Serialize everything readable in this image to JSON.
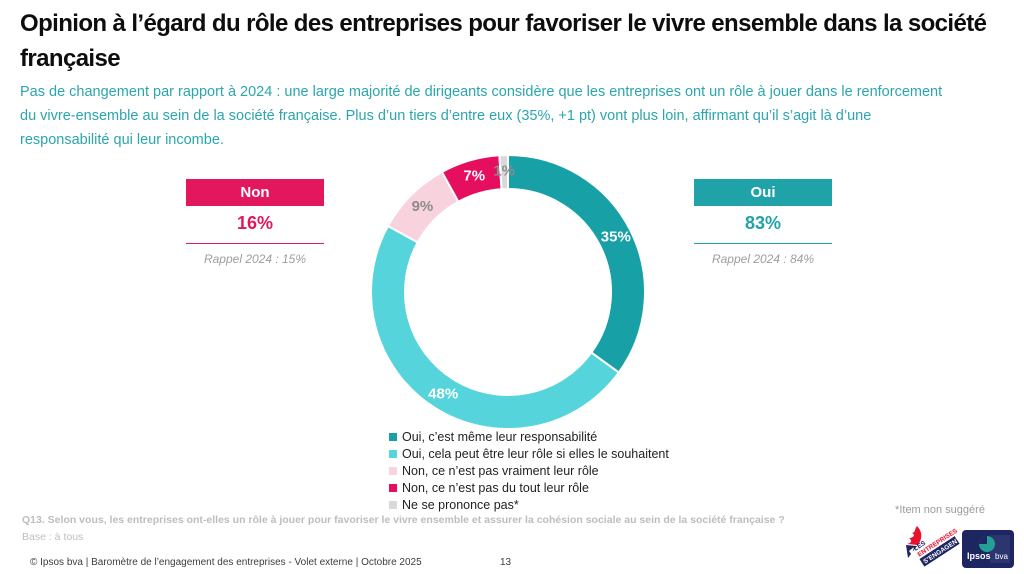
{
  "slide": {
    "title": "Opinion à l’égard du rôle des entreprises pour favoriser le vivre ensemble dans la société française",
    "subtitle": "Pas de changement par rapport à 2024 : une large majorité de dirigeants considère que les entreprises ont un rôle à jouer dans le renforcement du vivre-ensemble au sein de la société française. Plus d’un tiers d’entre eux (35%, +1 pt) vont plus loin, affirmant qu’il s’agit là d’une responsabilité qui leur incombe.",
    "subtitle_color": "#2aa6ae"
  },
  "summary": {
    "non": {
      "label": "Non",
      "value": "16%",
      "rappel": "Rappel 2024 : 15%",
      "color": "#e2175d"
    },
    "oui": {
      "label": "Oui",
      "value": "83%",
      "rappel": "Rappel 2024 : 84%",
      "color": "#1fa3a9"
    }
  },
  "chart_data": {
    "type": "pie",
    "subtype": "donut",
    "start_angle_deg": 0,
    "direction": "clockwise",
    "outer_radius": 137,
    "inner_radius": 103,
    "legend_position": "bottom",
    "segments": [
      {
        "label": "Oui, c’est même leur responsabilité",
        "value": 35,
        "value_label": "35%",
        "color": "#18a0a7",
        "label_color": "#ffffff"
      },
      {
        "label": "Oui, cela peut être leur rôle si elles le souhaitent",
        "value": 48,
        "value_label": "48%",
        "color": "#55d5db",
        "label_color": "#ffffff"
      },
      {
        "label": "Non, ce n’est pas vraiment leur rôle",
        "value": 9,
        "value_label": "9%",
        "color": "#f8d2dd",
        "label_color": "#8c8c8c"
      },
      {
        "label": "Non, ce n’est pas du tout leur rôle",
        "value": 7,
        "value_label": "7%",
        "color": "#e60f5f",
        "label_color": "#ffffff"
      },
      {
        "label": "Ne se prononce pas*",
        "value": 1,
        "value_label": "1%",
        "color": "#d9d9d9",
        "label_color": "#8c8c8c"
      }
    ]
  },
  "footnote": "*Item non suggéré",
  "question": {
    "text": "Q13. Selon vous, les entreprises ont-elles un rôle à jouer pour favoriser le vivre ensemble et assurer la cohésion sociale au sein de la société française ?",
    "base": "Base : à tous"
  },
  "footer": {
    "source": "© Ipsos bva | Baromètre de l’engagement des entreprises - Volet externe | Octobre 2025",
    "page": "13"
  },
  "logos": {
    "entreprises": {
      "line1": "LES",
      "line2": "ENTREPRISES",
      "line3": "S’ENGAGENT"
    },
    "ipsos": {
      "brand": "Ipsos",
      "sub": "bva"
    }
  }
}
